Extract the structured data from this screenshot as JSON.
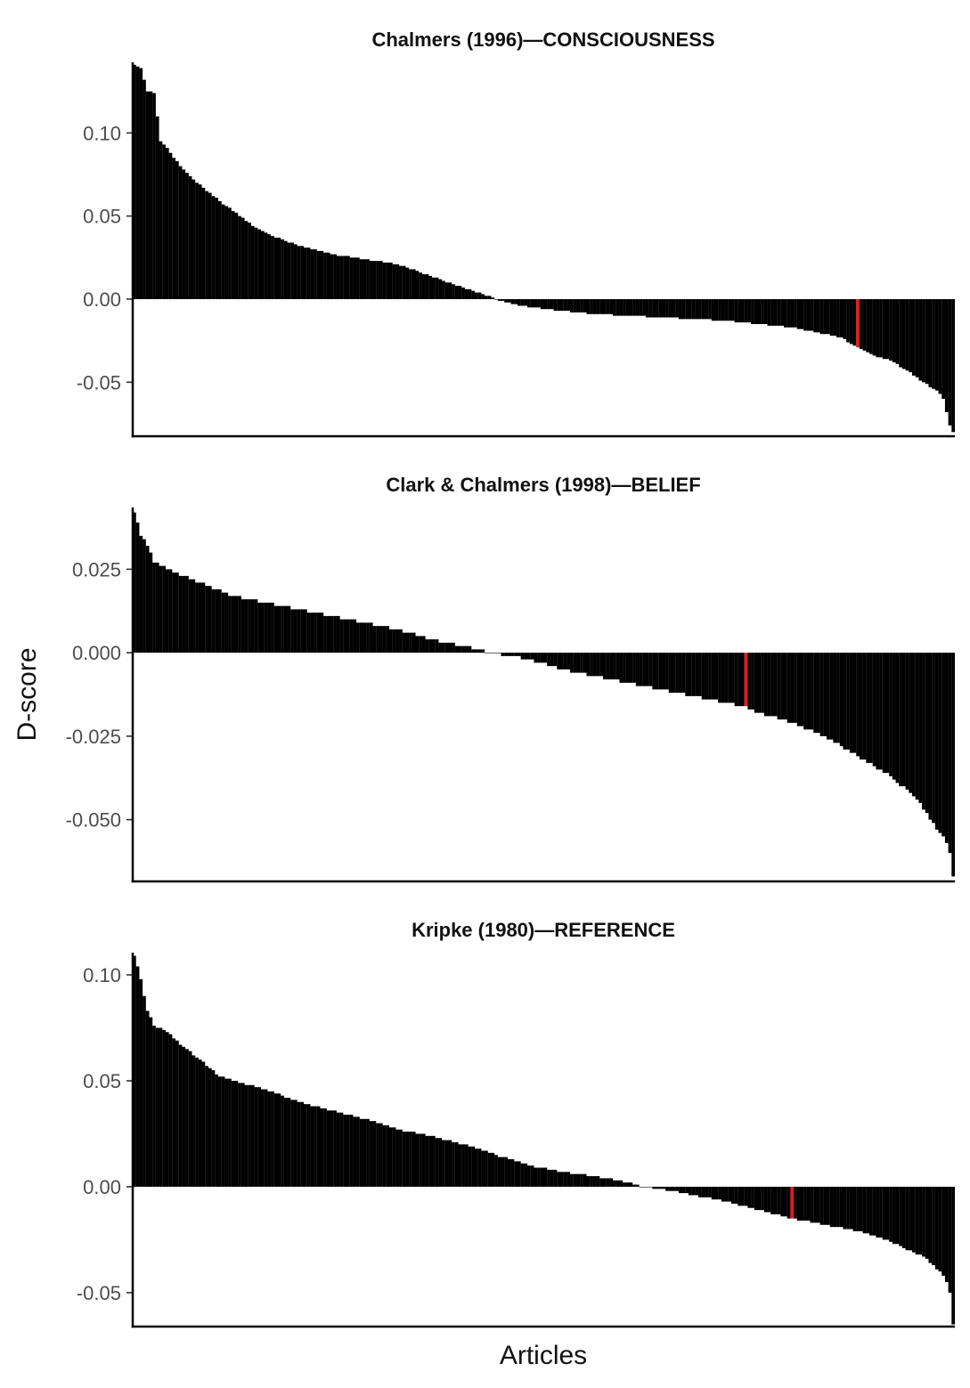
{
  "figure": {
    "ylabel": "D-score",
    "xlabel": "Articles"
  },
  "chart_data": [
    {
      "type": "bar",
      "title": "Chalmers (1996)—CONSCIOUSNESS",
      "n_bars": 250,
      "highlight_index": 220,
      "highlight_color": "#e41a1c",
      "bar_color": "#000000",
      "ylim": [
        -0.0825,
        0.1425
      ],
      "yticks": [
        0.1,
        0.05,
        0.0,
        -0.05
      ],
      "ytick_labels": [
        "0.10",
        "0.05",
        "0.00",
        "-0.05"
      ],
      "sorted_profile": [
        [
          0,
          0.141
        ],
        [
          2,
          0.139
        ],
        [
          4,
          0.125
        ],
        [
          6,
          0.124
        ],
        [
          8,
          0.095
        ],
        [
          10,
          0.091
        ],
        [
          14,
          0.08
        ],
        [
          18,
          0.072
        ],
        [
          24,
          0.062
        ],
        [
          30,
          0.053
        ],
        [
          36,
          0.044
        ],
        [
          42,
          0.038
        ],
        [
          50,
          0.032
        ],
        [
          60,
          0.027
        ],
        [
          70,
          0.024
        ],
        [
          80,
          0.021
        ],
        [
          90,
          0.014
        ],
        [
          100,
          0.007
        ],
        [
          106,
          0.003
        ],
        [
          110,
          0.0
        ],
        [
          115,
          -0.003
        ],
        [
          125,
          -0.006
        ],
        [
          140,
          -0.009
        ],
        [
          160,
          -0.011
        ],
        [
          180,
          -0.013
        ],
        [
          200,
          -0.017
        ],
        [
          215,
          -0.023
        ],
        [
          219,
          -0.028
        ],
        [
          225,
          -0.034
        ],
        [
          230,
          -0.037
        ],
        [
          235,
          -0.043
        ],
        [
          240,
          -0.05
        ],
        [
          244,
          -0.055
        ],
        [
          246,
          -0.06
        ],
        [
          248,
          -0.076
        ],
        [
          249,
          -0.08
        ]
      ]
    },
    {
      "type": "bar",
      "title": "Clark & Chalmers (1998)—BELIEF",
      "n_bars": 250,
      "highlight_index": 186,
      "highlight_color": "#e41a1c",
      "bar_color": "#000000",
      "ylim": [
        -0.0685,
        0.0435
      ],
      "yticks": [
        0.025,
        0.0,
        -0.025,
        -0.05
      ],
      "ytick_labels": [
        "0.025",
        "0.000",
        "-0.025",
        "-0.050"
      ],
      "sorted_profile": [
        [
          0,
          0.042
        ],
        [
          2,
          0.035
        ],
        [
          4,
          0.032
        ],
        [
          6,
          0.027
        ],
        [
          10,
          0.025
        ],
        [
          20,
          0.021
        ],
        [
          30,
          0.017
        ],
        [
          40,
          0.015
        ],
        [
          50,
          0.013
        ],
        [
          60,
          0.011
        ],
        [
          70,
          0.009
        ],
        [
          80,
          0.007
        ],
        [
          90,
          0.004
        ],
        [
          100,
          0.002
        ],
        [
          105,
          0.001
        ],
        [
          108,
          0.0
        ],
        [
          115,
          -0.001
        ],
        [
          120,
          -0.002
        ],
        [
          130,
          -0.005
        ],
        [
          140,
          -0.007
        ],
        [
          150,
          -0.009
        ],
        [
          160,
          -0.011
        ],
        [
          170,
          -0.013
        ],
        [
          185,
          -0.016
        ],
        [
          190,
          -0.018
        ],
        [
          200,
          -0.021
        ],
        [
          210,
          -0.025
        ],
        [
          220,
          -0.031
        ],
        [
          230,
          -0.037
        ],
        [
          238,
          -0.044
        ],
        [
          242,
          -0.05
        ],
        [
          246,
          -0.055
        ],
        [
          248,
          -0.06
        ],
        [
          249,
          -0.067
        ]
      ]
    },
    {
      "type": "bar",
      "title": "Kripke (1980)—REFERENCE",
      "n_bars": 250,
      "highlight_index": 200,
      "highlight_color": "#e41a1c",
      "bar_color": "#000000",
      "ylim": [
        -0.066,
        0.1105
      ],
      "yticks": [
        0.1,
        0.05,
        0.0,
        -0.05
      ],
      "ytick_labels": [
        "0.10",
        "0.05",
        "0.00",
        "-0.05"
      ],
      "sorted_profile": [
        [
          0,
          0.109
        ],
        [
          2,
          0.098
        ],
        [
          3,
          0.09
        ],
        [
          4,
          0.083
        ],
        [
          6,
          0.076
        ],
        [
          10,
          0.073
        ],
        [
          14,
          0.067
        ],
        [
          20,
          0.06
        ],
        [
          26,
          0.052
        ],
        [
          30,
          0.05
        ],
        [
          40,
          0.046
        ],
        [
          50,
          0.04
        ],
        [
          60,
          0.036
        ],
        [
          70,
          0.032
        ],
        [
          80,
          0.027
        ],
        [
          90,
          0.024
        ],
        [
          100,
          0.02
        ],
        [
          110,
          0.015
        ],
        [
          120,
          0.01
        ],
        [
          130,
          0.007
        ],
        [
          140,
          0.005
        ],
        [
          150,
          0.002
        ],
        [
          155,
          0.0
        ],
        [
          160,
          -0.001
        ],
        [
          170,
          -0.004
        ],
        [
          180,
          -0.007
        ],
        [
          190,
          -0.011
        ],
        [
          200,
          -0.015
        ],
        [
          210,
          -0.018
        ],
        [
          220,
          -0.021
        ],
        [
          230,
          -0.026
        ],
        [
          240,
          -0.033
        ],
        [
          245,
          -0.04
        ],
        [
          247,
          -0.045
        ],
        [
          248,
          -0.05
        ],
        [
          249,
          -0.065
        ]
      ]
    }
  ]
}
